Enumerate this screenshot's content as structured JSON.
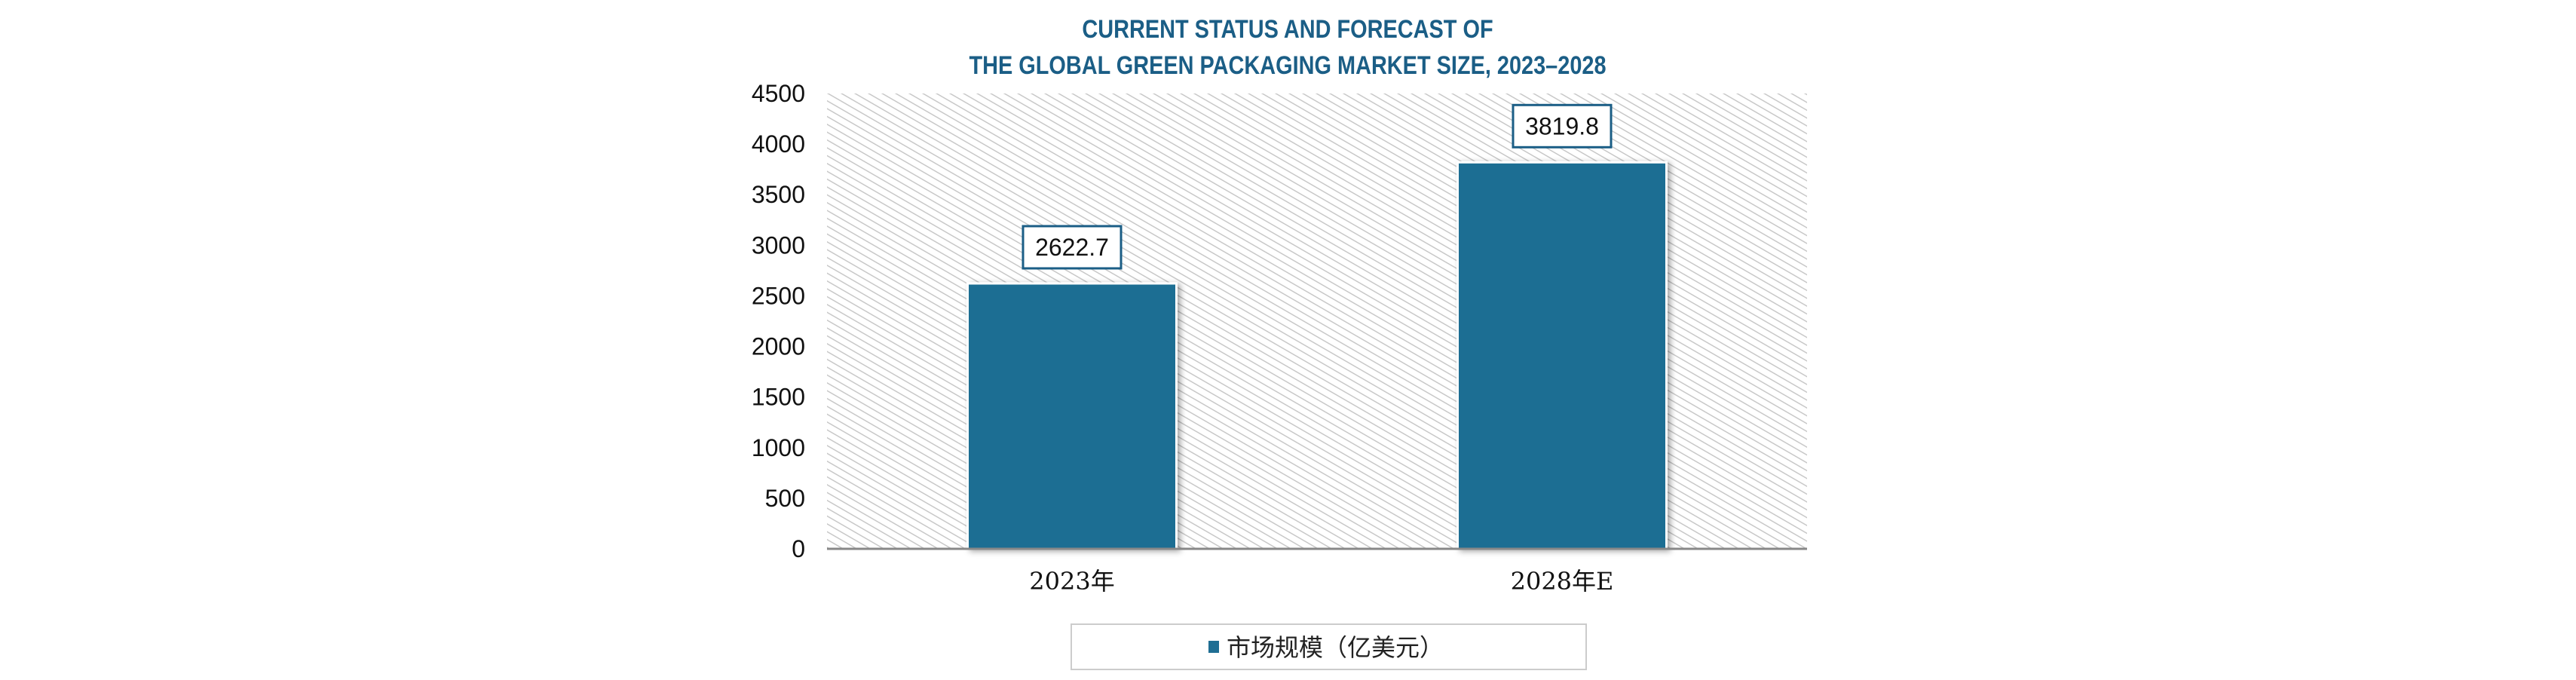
{
  "chart_data": {
    "type": "bar",
    "title": [
      "CURRENT STATUS AND FORECAST OF",
      "THE GLOBAL GREEN PACKAGING MARKET SIZE, 2023–2028"
    ],
    "categories": [
      "2023年",
      "2028年E"
    ],
    "series": [
      {
        "name": "市场规模（亿美元）",
        "values": [
          2622.7,
          3819.8
        ]
      }
    ],
    "data_labels": [
      "2622.7",
      "3819.8"
    ],
    "xlabel": "",
    "ylabel": "",
    "ylim": [
      0,
      4500
    ],
    "yticks": [
      0,
      500,
      1000,
      1500,
      2000,
      2500,
      3000,
      3500,
      4000,
      4500
    ],
    "grid": false,
    "legend_position": "bottom",
    "colors": {
      "bar": "#1f6e93",
      "title": "#1b5e86",
      "label_border": "#1b5e86"
    }
  }
}
